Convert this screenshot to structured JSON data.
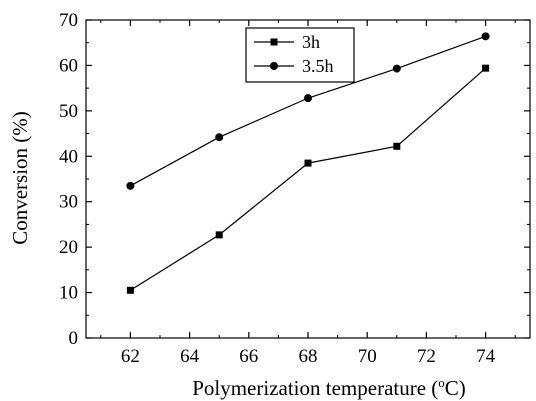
{
  "chart_data": {
    "type": "line",
    "title": "",
    "xlabel": "Polymerization temperature (°C)",
    "xlabel_main": "Polymerization temperature (",
    "xlabel_sup": "o",
    "xlabel_tail": "C)",
    "ylabel": "Conversion (%)",
    "xlim": [
      60.5,
      75.5
    ],
    "ylim": [
      0,
      70
    ],
    "xticks": [
      62,
      64,
      66,
      68,
      70,
      72,
      74
    ],
    "yticks": [
      0,
      10,
      20,
      30,
      40,
      50,
      60,
      70
    ],
    "legend_position": "top-center",
    "grid": false,
    "series": [
      {
        "name": "3h",
        "marker": "square",
        "color": "#000000",
        "x": [
          62,
          65,
          68,
          71,
          74
        ],
        "y": [
          10.5,
          22.7,
          38.5,
          42.2,
          59.4
        ]
      },
      {
        "name": "3.5h",
        "marker": "circle",
        "color": "#000000",
        "x": [
          62,
          65,
          68,
          71,
          74
        ],
        "y": [
          33.5,
          44.2,
          52.8,
          59.3,
          66.4
        ]
      }
    ]
  }
}
